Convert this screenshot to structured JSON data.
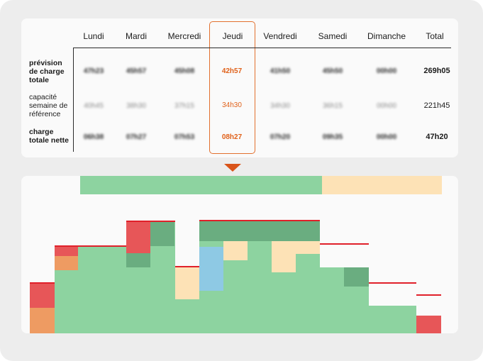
{
  "days": [
    "Lundi",
    "Mardi",
    "Mercredi",
    "Jeudi",
    "Vendredi",
    "Samedi",
    "Dimanche"
  ],
  "total_header": "Total",
  "rows": [
    {
      "label_lines": [
        "prévision",
        "de charge",
        "totale"
      ],
      "values": [
        "47h23",
        "45h57",
        "45h08",
        "42h57",
        "41h50",
        "45h50",
        "00h00"
      ],
      "total": "269h05"
    },
    {
      "label_lines": [
        "capacité",
        "semaine de",
        "référence"
      ],
      "values": [
        "40h45",
        "38h30",
        "37h15",
        "34h30",
        "34h30",
        "36h15",
        "00h00"
      ],
      "total": "221h45"
    },
    {
      "label_lines": [
        "charge",
        "totale nette"
      ],
      "values": [
        "06h38",
        "07h27",
        "07h53",
        "08h27",
        "07h20",
        "09h35",
        "00h00"
      ],
      "total": "47h20"
    }
  ],
  "highlighted_day_index": 3,
  "colors": {
    "accent": "#e0611a",
    "green": "#8dd3a0",
    "dark_green": "#6aad80",
    "peach": "#fde2b6",
    "red": "#e75658",
    "orange": "#ee9b62",
    "blue": "#8ec9e4",
    "red_line": "#e0202a"
  }
}
